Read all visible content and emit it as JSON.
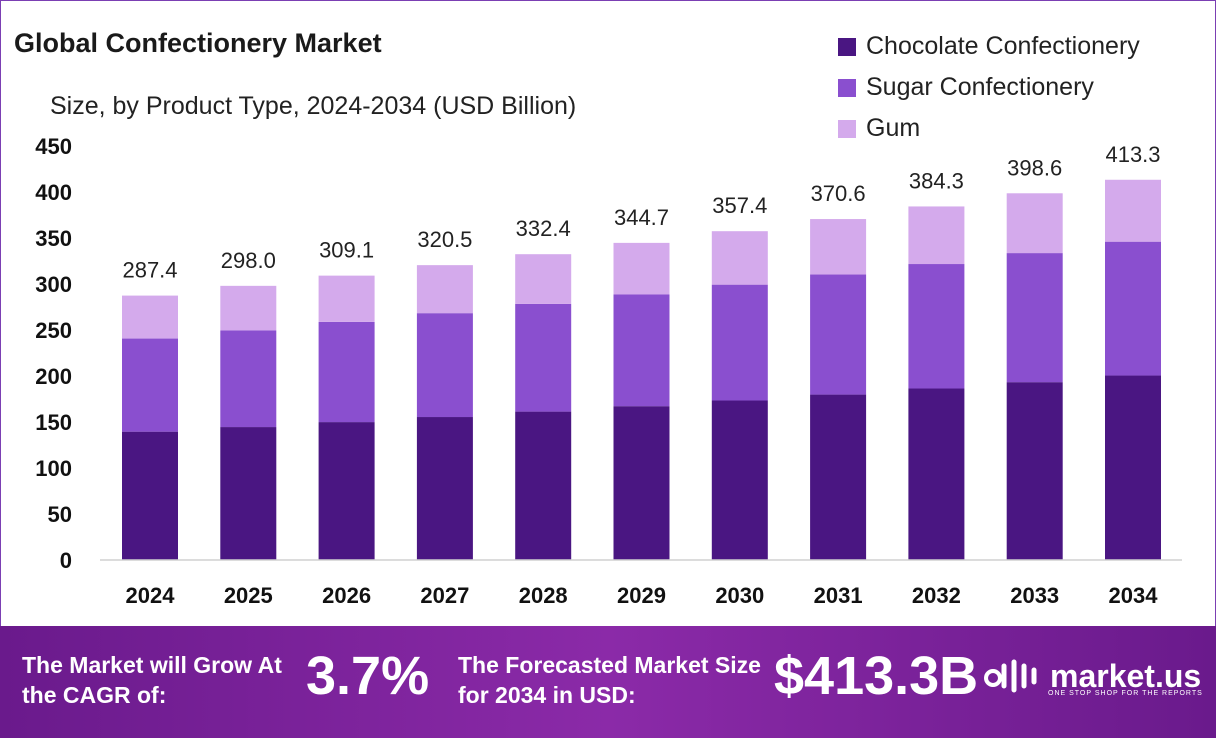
{
  "title": "Global Confectionery Market",
  "subtitle": "Size, by Product Type, 2024-2034 (USD Billion)",
  "colors": {
    "chocolate": "#4a1682",
    "sugar": "#8a4fcf",
    "gum": "#d4aaec"
  },
  "chart_data": {
    "type": "bar",
    "stacked": true,
    "categories": [
      "2024",
      "2025",
      "2026",
      "2027",
      "2028",
      "2029",
      "2030",
      "2031",
      "2032",
      "2033",
      "2034"
    ],
    "series": [
      {
        "name": "Chocolate Confectionery",
        "values": [
          139.5,
          144.5,
          149.9,
          155.4,
          161.3,
          167.2,
          173.4,
          179.8,
          186.4,
          193.3,
          200.5
        ]
      },
      {
        "name": "Sugar Confectionery",
        "values": [
          101.2,
          105.0,
          108.9,
          112.9,
          117.1,
          121.4,
          125.9,
          130.5,
          135.3,
          140.3,
          145.5
        ]
      },
      {
        "name": "Gum",
        "values": [
          46.7,
          48.5,
          50.3,
          52.2,
          54.0,
          56.1,
          58.1,
          60.3,
          62.6,
          65.0,
          67.3
        ]
      }
    ],
    "totals": [
      "287.4",
      "298.0",
      "309.1",
      "320.5",
      "332.4",
      "344.7",
      "357.4",
      "370.6",
      "384.3",
      "398.6",
      "413.3"
    ],
    "yticks": [
      0,
      50,
      100,
      150,
      200,
      250,
      300,
      350,
      400,
      450
    ],
    "ylim": [
      0,
      450
    ],
    "xlabel": "",
    "ylabel": "",
    "grid": false,
    "legend": "top-right"
  },
  "footer": {
    "cagr_label": "The Market will Grow At the CAGR of:",
    "cagr_value": "3.7%",
    "forecast_label": "The Forecasted Market Size for 2034 in USD:",
    "forecast_value": "$413.3B",
    "brand_name": "market.us",
    "brand_tagline": "ONE STOP SHOP FOR THE REPORTS"
  }
}
